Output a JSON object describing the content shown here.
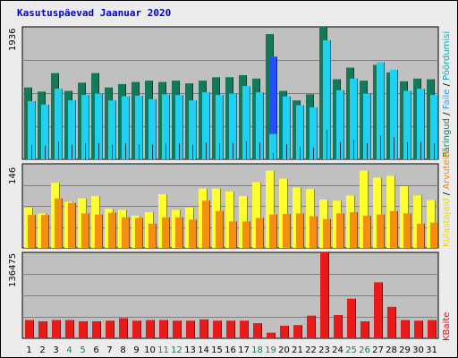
{
  "title": "Kasutuspäevad Jaanuar 2020",
  "panel_labels": {
    "top_max": "1936",
    "mid_max": "146",
    "bot_max": "136475",
    "right_top": [
      {
        "text": "Päringud",
        "color": "#0e7e5e"
      },
      {
        "text": " / ",
        "color": "#000000"
      },
      {
        "text": "Faile",
        "color": "#3399ff"
      },
      {
        "text": " / ",
        "color": "#000000"
      },
      {
        "text": "Pöördumisi",
        "color": "#00aabb"
      }
    ],
    "right_mid": [
      {
        "text": "Külastajaid",
        "color": "#e8d800"
      },
      {
        "text": " / ",
        "color": "#000000"
      },
      {
        "text": "Arvuteid",
        "color": "#ff7f00"
      }
    ],
    "right_bot": [
      {
        "text": "KBaite",
        "color": "#ff0000"
      }
    ]
  },
  "colors": {
    "plot_bg": "#c0c0c0",
    "grid": "#7f7f7f",
    "requests": "#12795a",
    "files": "#20d0f0",
    "highlight_files": "#2050ff",
    "hits_dark": "#083a55",
    "visits": "#ffff30",
    "sites": "#f58f10",
    "kbytes": "#e81a1a",
    "weekday_label": "#000000",
    "weekend_label": "#0a8a4a"
  },
  "chart_data": {
    "type": "bar",
    "categories": [
      "1",
      "2",
      "3",
      "4",
      "5",
      "6",
      "7",
      "8",
      "9",
      "10",
      "11",
      "12",
      "13",
      "14",
      "15",
      "16",
      "17",
      "18",
      "19",
      "20",
      "21",
      "22",
      "23",
      "24",
      "25",
      "26",
      "27",
      "28",
      "29",
      "30",
      "31"
    ],
    "weekend_days": [
      "4",
      "5",
      "11",
      "12",
      "18",
      "19",
      "25",
      "26"
    ],
    "highlight_day": "19",
    "panels": [
      {
        "name": "requests_files_hits",
        "ylim": [
          0,
          1936
        ],
        "series": [
          {
            "name": "Päringud",
            "values": [
              1050,
              990,
              1260,
              1000,
              1120,
              1260,
              1050,
              1100,
              1130,
              1150,
              1130,
              1150,
              1110,
              1150,
              1200,
              1200,
              1230,
              1180,
              1830,
              1000,
              860,
              950,
              1936,
              1170,
              1340,
              1150,
              1380,
              1270,
              1140,
              1180,
              1170
            ]
          },
          {
            "name": "Faile",
            "values": [
              840,
              790,
              1030,
              860,
              930,
              960,
              850,
              920,
              930,
              870,
              920,
              920,
              860,
              970,
              940,
              960,
              1070,
              970,
              1500,
              920,
              790,
              760,
              1730,
              1000,
              1180,
              950,
              1420,
              1310,
              1000,
              1030,
              940
            ]
          },
          {
            "name": "Pöördumisi",
            "values": [
              850,
              800,
              1030,
              860,
              940,
              950,
              860,
              920,
              880,
              880,
              950,
              940,
              850,
              980,
              940,
              960,
              1050,
              980,
              370,
              890,
              720,
              680,
              1740,
              1010,
              1160,
              960,
              1390,
              1300,
              990,
              1030,
              940
            ]
          }
        ]
      },
      {
        "name": "visits_sites",
        "ylim": [
          0,
          146
        ],
        "series": [
          {
            "name": "Külastajaid",
            "values": [
              70,
              60,
              113,
              80,
              86,
              90,
              68,
              66,
              56,
              62,
              93,
              66,
              70,
              103,
              103,
              98,
              90,
              114,
              134,
              120,
              105,
              102,
              84,
              82,
              91,
              134,
              122,
              125,
              107,
              91,
              83
            ]
          },
          {
            "name": "Arvuteid",
            "values": [
              57,
              57,
              86,
              78,
              60,
              58,
              61,
              53,
              52,
              42,
              53,
              53,
              49,
              82,
              64,
              46,
              46,
              52,
              58,
              59,
              60,
              55,
              50,
              60,
              62,
              56,
              58,
              64,
              60,
              42,
              44
            ]
          }
        ]
      },
      {
        "name": "kbytes",
        "ylim": [
          0,
          136475
        ],
        "series": [
          {
            "name": "KBaite",
            "values": [
              29000,
              27000,
              29000,
              29000,
              27000,
              27000,
              28000,
              32000,
              28000,
              29000,
              29000,
              28000,
              28000,
              30000,
              28000,
              28000,
              28000,
              24000,
              9000,
              20000,
              21000,
              36000,
              136475,
              37000,
              63000,
              27000,
              89000,
              50000,
              29000,
              28000,
              29000
            ]
          }
        ]
      }
    ]
  }
}
